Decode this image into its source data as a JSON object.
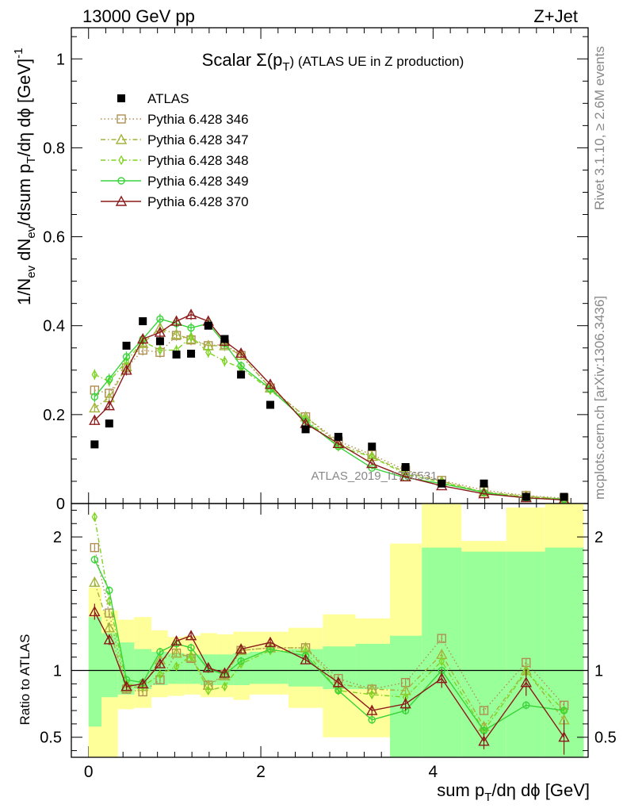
{
  "header": {
    "left": "13000 GeV pp",
    "right": "Z+Jet"
  },
  "side_labels": {
    "rivet": "Rivet 3.1.10, ≥ 2.6M events",
    "mcplots": "mcplots.cern.ch [arXiv:1306.3436]"
  },
  "watermark": "ATLAS_2019_I1736531",
  "main_title": {
    "prefix": "Scalar Σ(p",
    "sub": "T",
    "suffix": ") (ATLAS UE in Z production)"
  },
  "y_label": {
    "p1": "1/N",
    "s1": "ev",
    "p2": " dN",
    "s2": "ev",
    "p3": "/dsum p",
    "s3": "T",
    "p4": "/dη dϕ  [GeV]",
    "sup": "-1"
  },
  "ratio_label": "Ratio to ATLAS",
  "x_label": {
    "p1": "sum p",
    "s1": "T",
    "p2": "/dη dϕ [GeV]"
  },
  "chart_data": [
    {
      "type": "scatter",
      "panel": "main",
      "x": [
        0.07,
        0.24,
        0.44,
        0.63,
        0.83,
        1.02,
        1.19,
        1.39,
        1.58,
        1.77,
        2.11,
        2.52,
        2.9,
        3.29,
        3.68,
        4.1,
        4.59,
        5.08,
        5.52
      ],
      "xlim": [
        -0.2,
        5.8
      ],
      "ylim": [
        0,
        1.07
      ],
      "x_ticks": [
        0,
        2,
        4
      ],
      "y_ticks": [
        0,
        0.2,
        0.4,
        0.6,
        0.8,
        1
      ],
      "y_tick_labels": [
        "0",
        "0.2",
        "0.4",
        "0.6",
        "0.8",
        "1"
      ],
      "series": [
        {
          "name": "ATLAS",
          "color": "#000000",
          "marker": "square-filled",
          "values": [
            0.133,
            0.18,
            0.355,
            0.41,
            0.365,
            0.335,
            0.337,
            0.4,
            0.37,
            0.29,
            0.222,
            0.167,
            0.15,
            0.128,
            0.082,
            0.045,
            0.045,
            0.015,
            0.015
          ]
        },
        {
          "name": "Pythia 6.428 346",
          "color": "#b08e52",
          "marker": "square-open",
          "line": "dotted",
          "values": [
            0.255,
            0.248,
            0.305,
            0.345,
            0.34,
            0.378,
            0.368,
            0.355,
            0.358,
            0.333,
            0.26,
            0.195,
            0.14,
            0.11,
            0.075,
            0.052,
            0.03,
            0.018,
            0.012
          ],
          "errors": [
            0.01,
            0.01,
            0.01,
            0.012,
            0.012,
            0.012,
            0.012,
            0.012,
            0.012,
            0.01,
            0.008,
            0.006,
            0.005,
            0.004,
            0.003,
            0.002,
            0.002,
            0.002,
            0.002
          ]
        },
        {
          "name": "Pythia 6.428 347",
          "color": "#a4b43c",
          "marker": "triangle-open",
          "line": "dashdot",
          "values": [
            0.215,
            0.238,
            0.308,
            0.36,
            0.395,
            0.38,
            0.37,
            0.355,
            0.355,
            0.333,
            0.26,
            0.195,
            0.135,
            0.106,
            0.07,
            0.05,
            0.026,
            0.017,
            0.01
          ],
          "errors": [
            0.01,
            0.01,
            0.01,
            0.012,
            0.012,
            0.012,
            0.012,
            0.012,
            0.012,
            0.01,
            0.008,
            0.006,
            0.005,
            0.004,
            0.003,
            0.002,
            0.002,
            0.002,
            0.002
          ]
        },
        {
          "name": "Pythia 6.428 348",
          "color": "#7ed321",
          "marker": "diamond-open",
          "line": "dashdot",
          "values": [
            0.29,
            0.275,
            0.32,
            0.365,
            0.345,
            0.345,
            0.375,
            0.34,
            0.32,
            0.305,
            0.255,
            0.19,
            0.128,
            0.105,
            0.066,
            0.048,
            0.025,
            0.015,
            0.01
          ],
          "errors": [
            0.012,
            0.012,
            0.012,
            0.012,
            0.012,
            0.012,
            0.012,
            0.012,
            0.012,
            0.01,
            0.008,
            0.006,
            0.005,
            0.004,
            0.003,
            0.002,
            0.002,
            0.002,
            0.002
          ]
        },
        {
          "name": "Pythia 6.428 349",
          "color": "#38d438",
          "marker": "circle-open",
          "line": "solid",
          "values": [
            0.24,
            0.28,
            0.33,
            0.37,
            0.415,
            0.405,
            0.395,
            0.405,
            0.36,
            0.31,
            0.258,
            0.185,
            0.128,
            0.08,
            0.058,
            0.045,
            0.025,
            0.012,
            0.01
          ],
          "errors": [
            0.012,
            0.012,
            0.012,
            0.012,
            0.012,
            0.012,
            0.012,
            0.012,
            0.012,
            0.01,
            0.008,
            0.006,
            0.005,
            0.004,
            0.003,
            0.002,
            0.002,
            0.002,
            0.002
          ]
        },
        {
          "name": "Pythia 6.428 370",
          "color": "#8b1a1a",
          "marker": "triangle-open",
          "line": "solid",
          "values": [
            0.187,
            0.22,
            0.3,
            0.37,
            0.385,
            0.41,
            0.425,
            0.41,
            0.365,
            0.338,
            0.268,
            0.18,
            0.135,
            0.09,
            0.06,
            0.04,
            0.022,
            0.013,
            0.008
          ],
          "errors": [
            0.01,
            0.01,
            0.012,
            0.012,
            0.012,
            0.012,
            0.012,
            0.012,
            0.012,
            0.01,
            0.008,
            0.006,
            0.005,
            0.004,
            0.003,
            0.002,
            0.002,
            0.002,
            0.002
          ]
        }
      ]
    },
    {
      "type": "line",
      "panel": "ratio",
      "x": [
        0.07,
        0.24,
        0.44,
        0.63,
        0.83,
        1.02,
        1.19,
        1.39,
        1.58,
        1.77,
        2.11,
        2.52,
        2.9,
        3.29,
        3.68,
        4.1,
        4.59,
        5.08,
        5.52
      ],
      "xlim": [
        -0.2,
        5.8
      ],
      "ylim": [
        0.35,
        2.25
      ],
      "x_ticks": [
        0,
        2,
        4
      ],
      "x_tick_labels": [
        "0",
        "2",
        "4"
      ],
      "y_ticks": [
        0.5,
        1,
        2
      ],
      "y_tick_labels": [
        "0.5",
        "1",
        "2"
      ],
      "bands": {
        "bin_edges": [
          0.0,
          0.15,
          0.34,
          0.53,
          0.73,
          0.92,
          1.11,
          1.3,
          1.49,
          1.68,
          1.87,
          2.32,
          2.72,
          3.1,
          3.5,
          3.87,
          4.33,
          4.85,
          5.3,
          5.75
        ],
        "green_lo": [
          0.58,
          0.8,
          0.82,
          0.86,
          0.89,
          0.9,
          0.9,
          0.89,
          0.89,
          0.89,
          0.9,
          0.88,
          0.86,
          0.86,
          0.35,
          0.35,
          0.35,
          0.35,
          0.35
        ],
        "green_hi": [
          1.4,
          1.28,
          1.21,
          1.16,
          1.14,
          1.13,
          1.12,
          1.12,
          1.12,
          1.13,
          1.14,
          1.16,
          1.18,
          1.2,
          1.26,
          1.92,
          1.89,
          1.89,
          1.92
        ],
        "yellow_lo": [
          0.35,
          0.35,
          0.71,
          0.72,
          0.8,
          0.81,
          0.82,
          0.8,
          0.8,
          0.78,
          0.82,
          0.72,
          0.5,
          0.5,
          0.35,
          0.35,
          0.68,
          0.35,
          0.35
        ],
        "yellow_hi": [
          1.62,
          1.45,
          1.38,
          1.4,
          1.3,
          1.25,
          1.26,
          1.28,
          1.27,
          1.29,
          1.29,
          1.32,
          1.42,
          1.39,
          1.95,
          2.25,
          1.97,
          2.22,
          2.25
        ]
      },
      "series": [
        {
          "name": "Pythia 6.428 346",
          "color": "#b08e52",
          "values": [
            1.92,
            1.43,
            0.86,
            0.84,
            0.93,
            1.13,
            1.09,
            0.89,
            0.97,
            1.15,
            1.17,
            1.17,
            0.94,
            0.86,
            0.91,
            1.24,
            0.7,
            1.06,
            0.74
          ]
        },
        {
          "name": "Pythia 6.428 347",
          "color": "#a4b43c",
          "values": [
            1.66,
            1.32,
            0.87,
            0.88,
            1.08,
            1.13,
            1.1,
            0.89,
            0.96,
            1.15,
            1.17,
            1.17,
            0.9,
            0.86,
            0.85,
            1.12,
            0.58,
            1.0,
            0.63
          ]
        },
        {
          "name": "Pythia 6.428 348",
          "color": "#7ed321",
          "values": [
            2.15,
            1.52,
            0.9,
            0.88,
            0.97,
            1.03,
            1.11,
            0.85,
            0.88,
            1.05,
            1.15,
            1.14,
            0.85,
            0.82,
            0.8,
            1.07,
            0.55,
            0.99,
            0.7
          ]
        },
        {
          "name": "Pythia 6.428 349",
          "color": "#38d438",
          "values": [
            1.83,
            1.6,
            0.93,
            0.91,
            1.14,
            1.2,
            1.17,
            1.01,
            0.97,
            1.07,
            1.16,
            1.11,
            0.85,
            0.63,
            0.7,
            1.0,
            0.55,
            0.74,
            0.7
          ]
        },
        {
          "name": "Pythia 6.428 370",
          "color": "#8b1a1a",
          "values": [
            1.44,
            1.23,
            0.88,
            0.9,
            1.05,
            1.22,
            1.26,
            1.02,
            0.98,
            1.16,
            1.21,
            1.08,
            0.91,
            0.7,
            0.75,
            0.94,
            0.47,
            0.91,
            0.5
          ],
          "errors": [
            0.06,
            0.04,
            0.03,
            0.03,
            0.03,
            0.03,
            0.03,
            0.03,
            0.03,
            0.03,
            0.03,
            0.03,
            0.04,
            0.04,
            0.05,
            0.07,
            0.06,
            0.1,
            0.13
          ]
        }
      ]
    }
  ]
}
